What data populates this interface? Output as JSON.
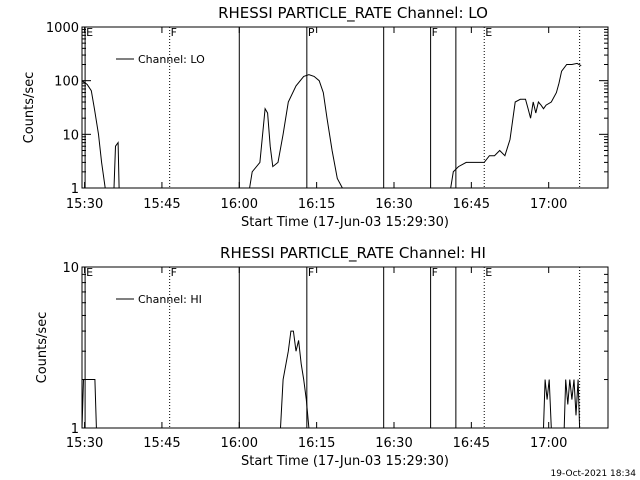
{
  "footer": {
    "timestamp": "19-Oct-2021 18:34"
  },
  "chart_data": [
    {
      "type": "line",
      "title": "RHESSI PARTICLE_RATE Channel: LO",
      "xlabel": "Start Time (17-Jun-03 15:29:30)",
      "ylabel": "Counts/sec",
      "yscale": "log",
      "ylim": [
        1,
        1000
      ],
      "xlim_minutes": [
        0,
        102
      ],
      "x_tick_labels": [
        "15:30",
        "15:45",
        "16:00",
        "16:15",
        "16:30",
        "16:45",
        "17:00"
      ],
      "x_ticks_minutes": [
        0.5,
        15.5,
        30.5,
        45.5,
        60.5,
        75.5,
        90.5
      ],
      "y_tick_labels": [
        "1",
        "10",
        "100",
        "1000"
      ],
      "y_ticks": [
        1,
        10,
        100,
        1000
      ],
      "legend": {
        "label": "Channel: LO",
        "position": "top-left"
      },
      "markers": [
        {
          "label": "E",
          "minute": 0.6,
          "style": "solid"
        },
        {
          "label": "F",
          "minute": 17.0,
          "style": "dotted"
        },
        {
          "label": "",
          "minute": 30.5,
          "style": "solid"
        },
        {
          "label": "P",
          "minute": 43.6,
          "style": "solid"
        },
        {
          "label": "",
          "minute": 58.5,
          "style": "solid"
        },
        {
          "label": "F",
          "minute": 67.6,
          "style": "solid"
        },
        {
          "label": "",
          "minute": 72.5,
          "style": "solid"
        },
        {
          "label": "E",
          "minute": 78.0,
          "style": "dotted"
        },
        {
          "label": "",
          "minute": 96.5,
          "style": "dotted"
        }
      ],
      "series": [
        {
          "name": "Channel: LO",
          "segments": [
            [
              [
                0,
                100
              ],
              [
                1,
                85
              ],
              [
                1.8,
                65
              ],
              [
                2.4,
                30
              ],
              [
                3.2,
                10
              ],
              [
                3.8,
                3
              ],
              [
                4.5,
                1
              ]
            ],
            [
              [
                6.2,
                1
              ],
              [
                6.5,
                6
              ],
              [
                7,
                7
              ],
              [
                7.2,
                1
              ]
            ],
            [
              [
                32.5,
                1
              ],
              [
                33,
                2
              ],
              [
                34.5,
                3
              ],
              [
                35.5,
                30
              ],
              [
                36,
                25
              ],
              [
                36.5,
                6
              ],
              [
                37,
                2.5
              ],
              [
                38,
                3
              ],
              [
                39,
                10
              ],
              [
                40,
                40
              ],
              [
                41.5,
                80
              ],
              [
                43,
                120
              ],
              [
                44,
                130
              ],
              [
                45,
                120
              ],
              [
                46,
                100
              ],
              [
                46.8,
                60
              ],
              [
                47.5,
                20
              ],
              [
                48.5,
                5
              ],
              [
                49.5,
                1.5
              ],
              [
                50.5,
                1
              ]
            ],
            [
              [
                71.5,
                1
              ],
              [
                72,
                2
              ],
              [
                73,
                2.5
              ],
              [
                74.5,
                3
              ],
              [
                76,
                3
              ],
              [
                78,
                3
              ],
              [
                79,
                4
              ],
              [
                80,
                4
              ],
              [
                81,
                5
              ],
              [
                82,
                4
              ],
              [
                83,
                8
              ],
              [
                84,
                40
              ],
              [
                85,
                45
              ],
              [
                86,
                45
              ],
              [
                86.5,
                30
              ],
              [
                87,
                20
              ],
              [
                87.5,
                40
              ],
              [
                88,
                25
              ],
              [
                88.5,
                40
              ],
              [
                89,
                35
              ],
              [
                89.5,
                30
              ],
              [
                90,
                35
              ],
              [
                91,
                40
              ],
              [
                92,
                60
              ],
              [
                92.5,
                90
              ],
              [
                93,
                150
              ],
              [
                94,
                200
              ],
              [
                95,
                200
              ],
              [
                96,
                210
              ],
              [
                96.8,
                190
              ]
            ]
          ]
        }
      ]
    },
    {
      "type": "line",
      "title": "RHESSI PARTICLE_RATE Channel: HI",
      "xlabel": "Start Time (17-Jun-03 15:29:30)",
      "ylabel": "Counts/sec",
      "yscale": "log",
      "ylim": [
        1,
        10
      ],
      "xlim_minutes": [
        0,
        102
      ],
      "x_tick_labels": [
        "15:30",
        "15:45",
        "16:00",
        "16:15",
        "16:30",
        "16:45",
        "17:00"
      ],
      "x_ticks_minutes": [
        0.5,
        15.5,
        30.5,
        45.5,
        60.5,
        75.5,
        90.5
      ],
      "y_tick_labels": [
        "1",
        "10"
      ],
      "y_ticks": [
        1,
        10
      ],
      "legend": {
        "label": "Channel: HI",
        "position": "top-left"
      },
      "markers": [
        {
          "label": "E",
          "minute": 0.6,
          "style": "solid"
        },
        {
          "label": "F",
          "minute": 17.0,
          "style": "dotted"
        },
        {
          "label": "",
          "minute": 30.5,
          "style": "solid"
        },
        {
          "label": "F",
          "minute": 43.6,
          "style": "solid"
        },
        {
          "label": "",
          "minute": 58.5,
          "style": "solid"
        },
        {
          "label": "F",
          "minute": 67.6,
          "style": "solid"
        },
        {
          "label": "",
          "minute": 72.5,
          "style": "solid"
        },
        {
          "label": "E",
          "minute": 78.0,
          "style": "dotted"
        },
        {
          "label": "",
          "minute": 96.5,
          "style": "dotted"
        }
      ],
      "series": [
        {
          "name": "Channel: HI",
          "segments": [
            [
              [
                0,
                1
              ],
              [
                0.3,
                2
              ],
              [
                2.5,
                2
              ],
              [
                2.8,
                1
              ]
            ],
            [
              [
                38.5,
                1
              ],
              [
                39,
                2
              ],
              [
                40,
                3
              ],
              [
                40.5,
                4
              ],
              [
                41,
                4
              ],
              [
                41.5,
                3
              ],
              [
                42,
                3.5
              ],
              [
                42.5,
                2.5
              ],
              [
                43,
                2
              ],
              [
                43.5,
                1.5
              ],
              [
                44,
                1
              ]
            ],
            [
              [
                89.5,
                1
              ],
              [
                89.8,
                2
              ],
              [
                90.2,
                1.5
              ],
              [
                90.6,
                2
              ],
              [
                91,
                1
              ]
            ],
            [
              [
                93.5,
                1
              ],
              [
                93.8,
                2
              ],
              [
                94.2,
                1.4
              ],
              [
                94.6,
                2
              ],
              [
                95,
                1.5
              ],
              [
                95.4,
                2
              ],
              [
                95.8,
                1.2
              ],
              [
                96.2,
                2
              ],
              [
                96.5,
                1
              ]
            ]
          ]
        }
      ]
    }
  ]
}
